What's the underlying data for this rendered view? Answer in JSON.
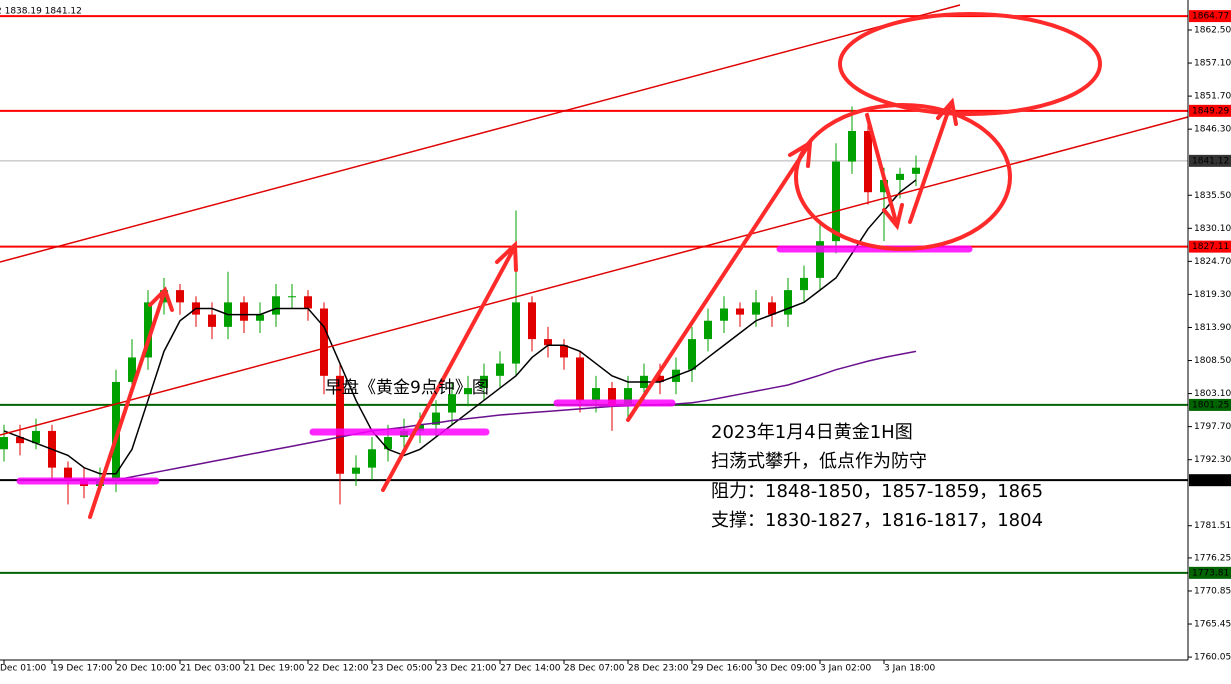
{
  "chart_data": {
    "type": "candlestick",
    "header_text": "2 1838.19 1841.12",
    "annotations": [
      {
        "text": "早盘《黄金9点钟》图"
      },
      {
        "text": "2023年1月4日黄金1H图"
      },
      {
        "text": "扫荡式攀升，低点作为防守"
      },
      {
        "text": "阻力：1848-1850，1857-1859，1865"
      },
      {
        "text": "支撑：1830-1827，1816-1817，1804"
      }
    ],
    "categories": [
      "Dec 01:00",
      null,
      null,
      "19 Dec 17:00",
      null,
      null,
      null,
      "20 Dec 10:00",
      null,
      null,
      null,
      "21 Dec 03:00",
      null,
      null,
      null,
      "21 Dec 19:00",
      null,
      null,
      null,
      "22 Dec 12:00",
      null,
      null,
      null,
      "23 Dec 05:00",
      null,
      null,
      null,
      "23 Dec 21:00",
      null,
      null,
      null,
      "27 Dec 14:00",
      null,
      null,
      null,
      "28 Dec 07:00",
      null,
      null,
      null,
      "28 Dec 23:00",
      null,
      null,
      null,
      "29 Dec 16:00",
      null,
      null,
      null,
      "30 Dec 09:00",
      null,
      null,
      null,
      "3 Jan 02:00",
      null,
      null,
      null,
      "3 Jan 18:00",
      null,
      null
    ],
    "open": [
      1794,
      1796,
      1795,
      1797,
      1791,
      1789,
      1788,
      1789,
      1805,
      1809,
      1818,
      1820,
      1818,
      1816,
      1814,
      1818,
      1815,
      1816,
      1819,
      1819,
      1817,
      1806,
      1790,
      1791,
      1794,
      1796,
      1797,
      1798,
      1800,
      1803,
      1804,
      1806,
      1808,
      1818,
      1812,
      1811,
      1809,
      1802,
      1804,
      1801,
      1804,
      1806,
      1805,
      1807,
      1812,
      1815,
      1817,
      1816,
      1818,
      1816,
      1820,
      1822,
      1828,
      1841,
      1846,
      1836,
      1838,
      1839
    ],
    "high": [
      1798,
      1798,
      1799,
      1798,
      1792,
      1791,
      1791,
      1807,
      1812,
      1820,
      1822,
      1821,
      1819,
      1818,
      1823,
      1819,
      1818,
      1821,
      1821,
      1820,
      1818,
      1808,
      1793,
      1796,
      1798,
      1799,
      1800,
      1802,
      1805,
      1806,
      1808,
      1810,
      1833,
      1819,
      1814,
      1812,
      1810,
      1806,
      1805,
      1806,
      1808,
      1808,
      1809,
      1814,
      1817,
      1819,
      1818,
      1820,
      1819,
      1822,
      1824,
      1831,
      1844,
      1850,
      1849,
      1840,
      1840,
      1842
    ],
    "low": [
      1792,
      1793,
      1794,
      1789,
      1785,
      1786,
      1787,
      1787,
      1803,
      1807,
      1816,
      1816,
      1814,
      1812,
      1812,
      1813,
      1813,
      1814,
      1817,
      1815,
      1803,
      1785,
      1788,
      1789,
      1792,
      1794,
      1795,
      1796,
      1798,
      1801,
      1802,
      1804,
      1806,
      1810,
      1809,
      1807,
      1800,
      1800,
      1797,
      1799,
      1802,
      1803,
      1803,
      1805,
      1810,
      1813,
      1814,
      1814,
      1814,
      1814,
      1818,
      1820,
      1826,
      1839,
      1834,
      1828,
      1835,
      1837
    ],
    "close": [
      1796,
      1795,
      1797,
      1791,
      1789,
      1788,
      1789,
      1805,
      1809,
      1818,
      1820,
      1818,
      1816,
      1814,
      1818,
      1815,
      1816,
      1819,
      1819,
      1817,
      1806,
      1790,
      1791,
      1794,
      1796,
      1797,
      1798,
      1800,
      1803,
      1804,
      1806,
      1808,
      1818,
      1812,
      1811,
      1809,
      1802,
      1804,
      1801,
      1804,
      1806,
      1805,
      1807,
      1812,
      1815,
      1817,
      1816,
      1818,
      1816,
      1820,
      1822,
      1828,
      1841,
      1846,
      1836,
      1838,
      1839,
      1840
    ],
    "up_color": "#00a000",
    "down_color": "#e00000",
    "series": [
      {
        "color": "#000000",
        "values": [
          1797,
          1796,
          1795,
          1794,
          1793,
          1791,
          1790,
          1790,
          1794,
          1802,
          1810,
          1815,
          1817,
          1817,
          1816,
          1816,
          1816,
          1817,
          1817,
          1817,
          1814,
          1808,
          1802,
          1797,
          1794,
          1793,
          1794,
          1796,
          1798,
          1800,
          1802,
          1804,
          1806,
          1809,
          1811,
          1811,
          1810,
          1808,
          1806,
          1805,
          1805,
          1805,
          1806,
          1807,
          1809,
          1811,
          1813,
          1815,
          1816,
          1817,
          1818,
          1820,
          1822,
          1826,
          1830,
          1833,
          1836,
          1838
        ]
      },
      {
        "color": "#6a0f8e",
        "values": [
          null,
          null,
          null,
          null,
          null,
          null,
          null,
          1789,
          1789.5,
          1790,
          1790.5,
          1791,
          1791.5,
          1792,
          1792.5,
          1793,
          1793.5,
          1794,
          1794.5,
          1795,
          1795.5,
          1796,
          1796.5,
          1797,
          1797.3,
          1797.6,
          1798,
          1798.3,
          1798.7,
          1799,
          1799.3,
          1799.6,
          1799.8,
          1800,
          1800.2,
          1800.4,
          1800.6,
          1800.8,
          1801,
          1801.1,
          1801.2,
          1801.3,
          1801.4,
          1801.6,
          1802,
          1802.5,
          1803,
          1803.5,
          1804,
          1804.5,
          1805.3,
          1806.1,
          1807,
          1807.7,
          1808.4,
          1809,
          1809.5,
          1810
        ]
      }
    ],
    "levels": [
      {
        "value": 1864.77,
        "color": "#ff0000"
      },
      {
        "value": 1849.29,
        "color": "#ff0000"
      },
      {
        "value": 1841.12,
        "color": "#b0b0b0"
      },
      {
        "value": 1827.11,
        "color": "#ff0000"
      },
      {
        "value": 1801.25,
        "color": "#006400"
      },
      {
        "value": 1788.95,
        "color": "#000000"
      },
      {
        "value": 1773.81,
        "color": "#006400"
      }
    ],
    "ylim": [
      1759.9,
      1867.4
    ],
    "yticks": [
      {
        "value": 1862.5,
        "label": "1862.50"
      },
      {
        "value": 1857.1,
        "label": "1857.10"
      },
      {
        "value": 1851.7,
        "label": "1851.70"
      },
      {
        "value": 1846.3,
        "label": "1846.30"
      },
      {
        "value": 1835.5,
        "label": "1835.50"
      },
      {
        "value": 1830.1,
        "label": "1830.10"
      },
      {
        "value": 1824.7,
        "label": "1824.70"
      },
      {
        "value": 1819.3,
        "label": "1819.30"
      },
      {
        "value": 1813.9,
        "label": "1813.90"
      },
      {
        "value": 1808.5,
        "label": "1808.50"
      },
      {
        "value": 1803.1,
        "label": "1803.10"
      },
      {
        "value": 1797.7,
        "label": "1797.70"
      },
      {
        "value": 1792.3,
        "label": "1792.30"
      },
      1781.51,
      1776.25,
      1770.85,
      1765.45,
      1760.05
    ]
  }
}
